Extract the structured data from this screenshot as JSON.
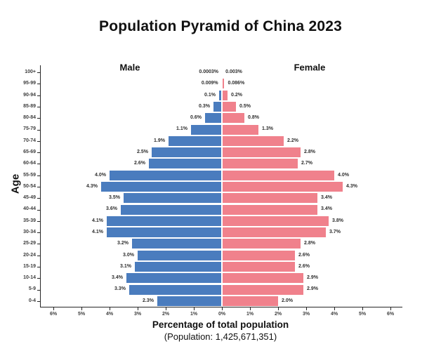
{
  "title": "Population Pyramid of China 2023",
  "chart_data": {
    "type": "bar",
    "subtype": "population-pyramid",
    "title": "Population Pyramid of China 2023",
    "xlabel": "Percentage of total population",
    "xlabel_sub": "(Population: 1,425,671,351)",
    "ylabel": "Age",
    "grid": false,
    "xlim_pct": [
      -6.5,
      6.5
    ],
    "x_tick_values": [
      -6,
      -5,
      -4,
      -3,
      -2,
      -1,
      0,
      1,
      2,
      3,
      4,
      5,
      6
    ],
    "x_tick_labels": [
      "6%",
      "5%",
      "4%",
      "3%",
      "2%",
      "1%",
      "0%",
      "1%",
      "2%",
      "3%",
      "4%",
      "5%",
      "6%"
    ],
    "categories_top_to_bottom": [
      "100+",
      "95-99",
      "90-94",
      "85-89",
      "80-84",
      "75-79",
      "70-74",
      "65-69",
      "60-64",
      "55-59",
      "50-54",
      "45-49",
      "40-44",
      "35-39",
      "30-34",
      "25-29",
      "20-24",
      "15-19",
      "10-14",
      "5-9",
      "0-4"
    ],
    "series": [
      {
        "name": "Male",
        "side": "left",
        "color": "#4a7cbe",
        "values": [
          0.0003,
          0.009,
          0.1,
          0.3,
          0.6,
          1.1,
          1.9,
          2.5,
          2.6,
          4.0,
          4.3,
          3.5,
          3.6,
          4.1,
          4.1,
          3.2,
          3.0,
          3.1,
          3.4,
          3.3,
          2.3
        ],
        "labels": [
          "0.0003%",
          "0.009%",
          "0.1%",
          "0.3%",
          "0.6%",
          "1.1%",
          "1.9%",
          "2.5%",
          "2.6%",
          "4.0%",
          "4.3%",
          "3.5%",
          "3.6%",
          "4.1%",
          "4.1%",
          "3.2%",
          "3.0%",
          "3.1%",
          "3.4%",
          "3.3%",
          "2.3%"
        ]
      },
      {
        "name": "Female",
        "side": "right",
        "color": "#f0818c",
        "values": [
          0.003,
          0.086,
          0.2,
          0.5,
          0.8,
          1.3,
          2.2,
          2.8,
          2.7,
          4.0,
          4.3,
          3.4,
          3.4,
          3.8,
          3.7,
          2.8,
          2.6,
          2.6,
          2.9,
          2.9,
          2.0
        ],
        "labels": [
          "0.003%",
          "0.086%",
          "0.2%",
          "0.5%",
          "0.8%",
          "1.3%",
          "2.2%",
          "2.8%",
          "2.7%",
          "4.0%",
          "4.3%",
          "3.4%",
          "3.4%",
          "3.8%",
          "3.7%",
          "2.8%",
          "2.6%",
          "2.6%",
          "2.9%",
          "2.9%",
          "2.0%"
        ]
      }
    ]
  }
}
